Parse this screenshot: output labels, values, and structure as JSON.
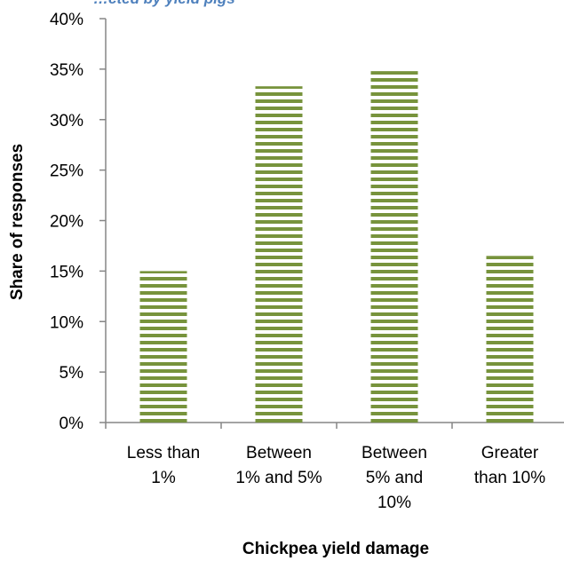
{
  "chart_data": {
    "type": "bar",
    "title": "",
    "clipped_title": "…cted by yield pigs",
    "categories": [
      [
        "Less than",
        "1%"
      ],
      [
        "Between",
        "1% and 5%"
      ],
      [
        "Between",
        "5% and",
        "10%"
      ],
      [
        "Greater",
        "than 10%"
      ]
    ],
    "values": [
      0.15,
      0.333,
      0.348,
      0.165
    ],
    "ylim": [
      0,
      0.4
    ],
    "yticks": [
      "0%",
      "5%",
      "10%",
      "15%",
      "20%",
      "25%",
      "30%",
      "35%",
      "40%"
    ],
    "xlabel": "Chickpea yield damage",
    "ylabel": "Share of responses",
    "grid": false,
    "bar_color": "#77933c",
    "bar_pattern": "horizontal-stripes"
  }
}
